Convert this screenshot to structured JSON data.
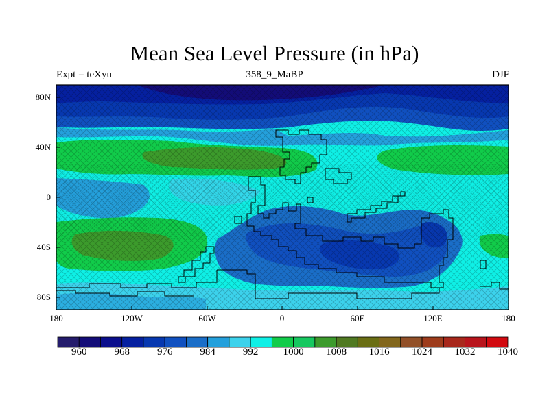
{
  "title": "Mean Sea Level Pressure (in hPa)",
  "subtitle_left": "Expt = teXyu",
  "subtitle_center": "358_9_MaBP",
  "subtitle_right": "DJF",
  "lat_labels": [
    "80N",
    "40N",
    "0",
    "40S",
    "80S"
  ],
  "lon_labels": [
    "180",
    "120W",
    "60W",
    "0",
    "60E",
    "120E",
    "180"
  ],
  "colorbar": {
    "colors": [
      "#241c6c",
      "#130c78",
      "#0a0e8c",
      "#0520a0",
      "#0738b0",
      "#1050c0",
      "#1a6ec8",
      "#24a0dc",
      "#3cd2ec",
      "#0ff0e6",
      "#11cc4a",
      "#16c860",
      "#3c9b2c",
      "#507a22",
      "#6a6e14",
      "#82661c",
      "#925028",
      "#9e3c1c",
      "#a8281c",
      "#b8141c",
      "#d20a10"
    ],
    "tick_labels": [
      "960",
      "968",
      "976",
      "984",
      "992",
      "1000",
      "1008",
      "1016",
      "1024",
      "1032",
      "1040"
    ]
  },
  "chart_data": {
    "type": "heatmap",
    "title": "Mean Sea Level Pressure (in hPa)",
    "variable": "Mean Sea Level Pressure",
    "units": "hPa",
    "xlim": [
      -180,
      180
    ],
    "ylim": [
      -90,
      90
    ],
    "contour_levels": [
      960,
      964,
      968,
      972,
      976,
      980,
      984,
      988,
      992,
      996,
      1000,
      1004,
      1008,
      1012,
      1016,
      1020,
      1024,
      1028,
      1032,
      1036,
      1040
    ],
    "features": [
      {
        "region": "north polar band 60N-90N",
        "approx_hPa": 966
      },
      {
        "region": "subtropical high N Pacific ~30N 150W",
        "approx_hPa": 1006
      },
      {
        "region": "subtropical high N Atlantic/Eurasia ~30N 30W-60E",
        "approx_hPa": 1012
      },
      {
        "region": "equatorial band",
        "approx_hPa": 996
      },
      {
        "region": "subtropical high S Pacific ~40S 105W",
        "approx_hPa": 1010
      },
      {
        "region": "southern continent low ~45S 75E",
        "approx_hPa": 980
      },
      {
        "region": "south polar band 75S-90S",
        "approx_hPa": 996
      }
    ]
  }
}
